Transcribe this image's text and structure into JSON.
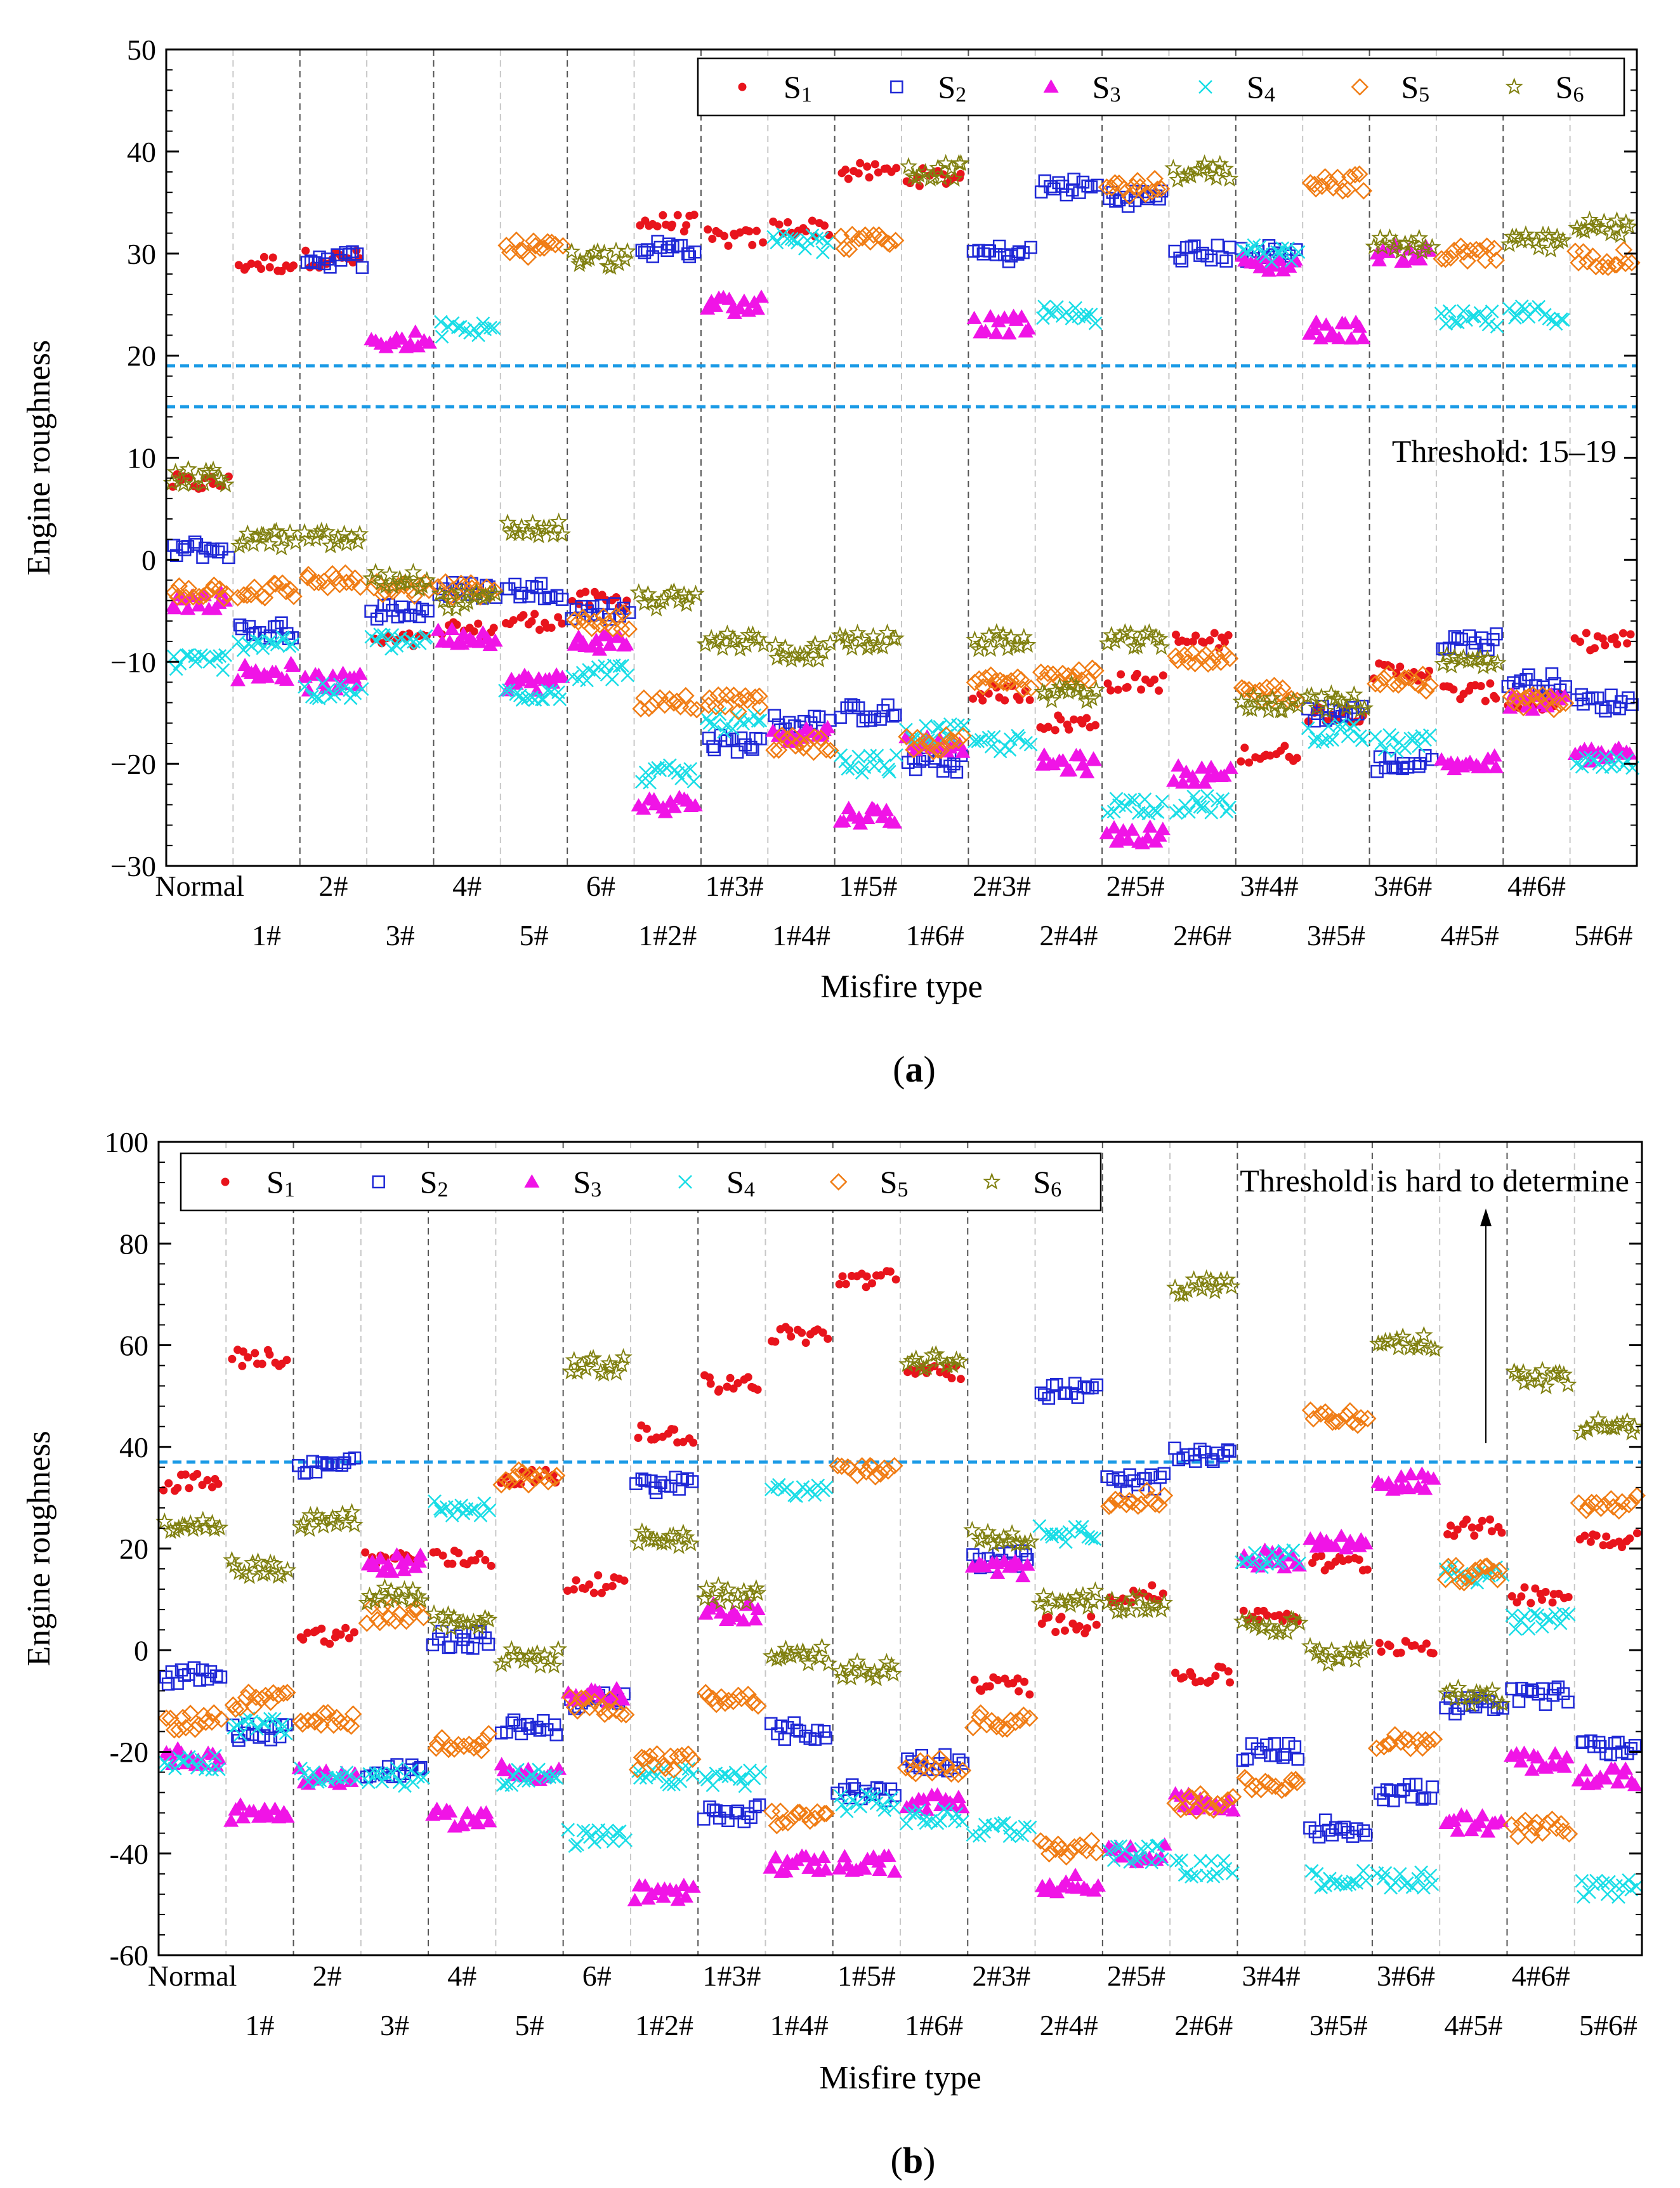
{
  "chart_data": [
    {
      "panel": "a",
      "caption": {
        "open": "(",
        "letter": "a",
        "close": ")"
      },
      "type": "scatter",
      "title": "",
      "xlabel": "Misfire type",
      "ylabel": "Engine roughness",
      "ylim": [
        -30,
        50
      ],
      "yticks": [
        -30,
        -20,
        -10,
        0,
        10,
        20,
        30,
        40,
        50
      ],
      "ytick_labels": [
        "−30",
        "−20",
        "−10",
        "0",
        "10",
        "20",
        "30",
        "40",
        "50"
      ],
      "grid": "vertical dashed separators between misfire types",
      "categories": [
        "Normal",
        "1#",
        "2#",
        "3#",
        "4#",
        "5#",
        "6#",
        "1#2#",
        "1#3#",
        "1#4#",
        "1#5#",
        "1#6#",
        "2#3#",
        "2#4#",
        "2#5#",
        "2#6#",
        "3#4#",
        "3#5#",
        "3#6#",
        "4#5#",
        "4#6#",
        "5#6#"
      ],
      "legend_position": "top-right",
      "threshold_lines": [
        15,
        19
      ],
      "annotation": "Threshold: 15–19",
      "series": [
        {
          "name": "S",
          "sub": "1",
          "marker": "dot",
          "color": "#e8141c",
          "values": [
            7.5,
            29,
            29.5,
            -8,
            -7,
            -6,
            -4,
            33,
            31.5,
            32.5,
            38,
            37.5,
            -13,
            -16,
            -12,
            -8,
            -19,
            -15,
            -11,
            -13,
            -14,
            -8
          ]
        },
        {
          "name": "S",
          "sub": "2",
          "marker": "square",
          "color": "#1f28d6",
          "values": [
            1,
            -7,
            29.5,
            -5,
            -3,
            -3,
            -5,
            30.5,
            -18,
            -16,
            -15,
            -20,
            30,
            36.5,
            35.5,
            30,
            30,
            -15,
            -20,
            -8,
            -12,
            -14
          ]
        },
        {
          "name": "S",
          "sub": "3",
          "marker": "triangle",
          "color": "#f014e6",
          "values": [
            -4,
            -11,
            -12,
            21.5,
            -7.5,
            -12,
            -8,
            -24,
            25,
            -17,
            -25,
            -18,
            23,
            -20,
            -27,
            -21,
            29,
            22.5,
            30,
            -20,
            -14,
            -19
          ]
        },
        {
          "name": "S",
          "sub": "4",
          "marker": "x",
          "color": "#19dde6",
          "values": [
            -10,
            -8,
            -13,
            -8,
            22.5,
            -13,
            -11,
            -21,
            -16,
            31,
            -20,
            -17,
            -18,
            24,
            -24,
            -24,
            30,
            -17,
            -18,
            23.5,
            24,
            -20
          ]
        },
        {
          "name": "S",
          "sub": "5",
          "marker": "diamond",
          "color": "#f07c14",
          "values": [
            -3,
            -3,
            -2,
            -3,
            -3,
            30.5,
            -6,
            -14,
            -14,
            -18,
            31,
            -18,
            -12,
            -11,
            36.5,
            -10,
            -13,
            37,
            -12,
            30,
            -14,
            29.5
          ]
        },
        {
          "name": "S",
          "sub": "6",
          "marker": "star",
          "color": "#808010",
          "values": [
            8,
            2,
            2,
            -2,
            -4,
            3,
            29.5,
            -4,
            -8,
            -9,
            -8,
            38,
            -8,
            -13,
            -8,
            38,
            -14,
            -14,
            31,
            -10,
            31,
            32.5
          ]
        }
      ]
    },
    {
      "panel": "b",
      "caption": {
        "open": "(",
        "letter": "b",
        "close": ")"
      },
      "type": "scatter",
      "title": "",
      "xlabel": "Misfire type",
      "ylabel": "Engine roughness",
      "ylim": [
        -60,
        100
      ],
      "yticks": [
        -60,
        -40,
        -20,
        0,
        20,
        40,
        60,
        80,
        100
      ],
      "ytick_labels": [
        "-60",
        "-40",
        "-20",
        "0",
        "20",
        "40",
        "60",
        "80",
        "100"
      ],
      "grid": "vertical dashed separators between misfire types",
      "categories": [
        "Normal",
        "1#",
        "2#",
        "3#",
        "4#",
        "5#",
        "6#",
        "1#2#",
        "1#3#",
        "1#4#",
        "1#5#",
        "1#6#",
        "2#3#",
        "2#4#",
        "2#5#",
        "2#6#",
        "3#4#",
        "3#5#",
        "3#6#",
        "4#5#",
        "4#6#",
        "5#6#"
      ],
      "legend_position": "top-left",
      "threshold_lines": [
        37
      ],
      "annotation": "Threshold is hard to determine",
      "series": [
        {
          "name": "S",
          "sub": "1",
          "marker": "dot",
          "color": "#e8141c",
          "values": [
            33,
            57.5,
            3,
            18,
            18,
            34,
            13,
            42.5,
            52.5,
            62,
            73,
            55,
            -7,
            5,
            11,
            -5,
            7,
            17,
            1,
            24,
            11,
            22
          ]
        },
        {
          "name": "S",
          "sub": "2",
          "marker": "square",
          "color": "#1f28d6",
          "values": [
            -5,
            -16,
            36.5,
            -24,
            2,
            -15,
            -10,
            32.5,
            -32,
            -16,
            -28,
            -22,
            18,
            51,
            33,
            38,
            -20,
            -35,
            -28,
            -11,
            -9,
            -19
          ]
        },
        {
          "name": "S",
          "sub": "3",
          "marker": "triangle",
          "color": "#f014e6",
          "values": [
            -21,
            -32,
            -25,
            17,
            -33,
            -24,
            -9,
            -48,
            7.5,
            -42,
            -42,
            -30,
            16,
            -46,
            -40,
            -30,
            18,
            21,
            33,
            -34,
            -22,
            -25
          ]
        },
        {
          "name": "S",
          "sub": "4",
          "marker": "x",
          "color": "#19dde6",
          "values": [
            -22,
            -15,
            -25,
            -25,
            28,
            -25,
            -37,
            -25,
            -25,
            31.5,
            -30,
            -33,
            -35,
            23,
            -40,
            -43,
            18,
            -45,
            -45,
            15,
            5.5,
            -47
          ]
        },
        {
          "name": "S",
          "sub": "5",
          "marker": "diamond",
          "color": "#f07c14",
          "values": [
            -14,
            -10,
            -14,
            7,
            -18,
            34,
            -11,
            -22,
            -10,
            -33,
            35.5,
            -23,
            -14,
            -39,
            30,
            -30,
            -26,
            46,
            -18,
            15,
            -35,
            29
          ]
        },
        {
          "name": "S",
          "sub": "6",
          "marker": "star",
          "color": "#808010",
          "values": [
            25,
            16,
            25.5,
            11,
            6,
            -1.5,
            56,
            22,
            11,
            -1,
            -4,
            57,
            22,
            10,
            9,
            71.5,
            5,
            -1,
            60.5,
            -9,
            53.5,
            44
          ]
        }
      ]
    }
  ]
}
